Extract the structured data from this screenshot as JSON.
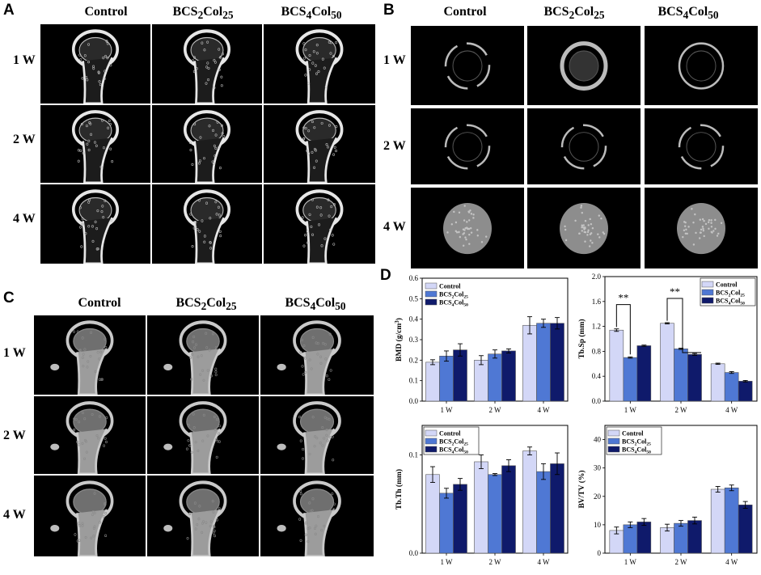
{
  "panels": {
    "A": {
      "letter": "A",
      "columns": [
        "Control",
        "BCS",
        "BCS"
      ],
      "column_sub": [
        {
          "pre": "BCS",
          "n1": "2",
          "mid": "Col",
          "n2": "25"
        },
        {
          "pre": "BCS",
          "n1": "4",
          "mid": "Col",
          "n2": "50"
        }
      ],
      "rows": [
        "1 W",
        "2 W",
        "4 W"
      ]
    },
    "B": {
      "letter": "B",
      "rows": [
        "1 W",
        "2 W",
        "4 W"
      ]
    },
    "C": {
      "letter": "C",
      "rows": [
        "1 W",
        "2 W",
        "4 W"
      ]
    },
    "D": {
      "letter": "D"
    }
  },
  "groups": {
    "control": "Control",
    "g2": {
      "pre": "BCS",
      "n1": "2",
      "mid": "Col",
      "n2": "25"
    },
    "g4": {
      "pre": "BCS",
      "n1": "4",
      "mid": "Col",
      "n2": "50"
    }
  },
  "colors": {
    "control": "#d3d7f7",
    "bcs2col25": "#4f78d4",
    "bcs4col50": "#0f1a6b"
  },
  "significance": [
    "**",
    "**"
  ],
  "chart_data": [
    {
      "type": "bar",
      "ylabel": "BMD (g/cm³)",
      "ylabel_parts": {
        "main": "BMD (g/cm",
        "sup": "3",
        "end": ")"
      },
      "categories": [
        "1 W",
        "2 W",
        "4 W"
      ],
      "ylim": [
        0,
        0.6
      ],
      "yticks": [
        "0.0",
        "0.1",
        "0.2",
        "0.3",
        "0.4",
        "0.5",
        "0.6"
      ],
      "legend": "top-left",
      "series": [
        {
          "name": "Control",
          "values": [
            0.19,
            0.2,
            0.37
          ],
          "errors": [
            0.012,
            0.022,
            0.042
          ]
        },
        {
          "name": "BCS2Col25",
          "values": [
            0.22,
            0.23,
            0.38
          ],
          "errors": [
            0.025,
            0.02,
            0.02
          ]
        },
        {
          "name": "BCS4Col50",
          "values": [
            0.25,
            0.245,
            0.38
          ],
          "errors": [
            0.03,
            0.01,
            0.028
          ]
        }
      ]
    },
    {
      "type": "bar",
      "ylabel": "Tb.Sp (mm)",
      "categories": [
        "1 W",
        "2 W",
        "4 W"
      ],
      "ylim": [
        0,
        2.0
      ],
      "yticks": [
        "0.0",
        "0.4",
        "0.8",
        "1.2",
        "1.6",
        "2.0"
      ],
      "legend": "top-right",
      "series": [
        {
          "name": "Control",
          "values": [
            1.14,
            1.25,
            0.6
          ],
          "errors": [
            0.02,
            0.01,
            0.01
          ]
        },
        {
          "name": "BCS2Col25",
          "values": [
            0.7,
            0.84,
            0.46
          ],
          "errors": [
            0.01,
            0.01,
            0.015
          ]
        },
        {
          "name": "BCS4Col50",
          "values": [
            0.89,
            0.75,
            0.32
          ],
          "errors": [
            0.01,
            0.015,
            0.012
          ]
        }
      ]
    },
    {
      "type": "bar",
      "ylabel": "Tb.Th (mm)",
      "categories": [
        "1 W",
        "2 W",
        "4 W"
      ],
      "ylim": [
        0,
        0.13
      ],
      "yticks": [
        "0.0",
        "0.1"
      ],
      "ytick_values": [
        0,
        0.1
      ],
      "legend": "top-left",
      "series": [
        {
          "name": "Control",
          "values": [
            0.08,
            0.093,
            0.104
          ],
          "errors": [
            0.008,
            0.007,
            0.004
          ]
        },
        {
          "name": "BCS2Col25",
          "values": [
            0.061,
            0.08,
            0.083
          ],
          "errors": [
            0.005,
            0.001,
            0.008
          ]
        },
        {
          "name": "BCS4Col50",
          "values": [
            0.07,
            0.089,
            0.091
          ],
          "errors": [
            0.006,
            0.006,
            0.011
          ]
        }
      ]
    },
    {
      "type": "bar",
      "ylabel": "BV/TV (%)",
      "categories": [
        "1 W",
        "2 W",
        "4 W"
      ],
      "ylim": [
        0,
        45
      ],
      "yticks": [
        "0",
        "10",
        "20",
        "30",
        "40"
      ],
      "legend": "top-left",
      "series": [
        {
          "name": "Control",
          "values": [
            8,
            9,
            22.5
          ],
          "errors": [
            1.2,
            1.2,
            1.0
          ]
        },
        {
          "name": "BCS2Col25",
          "values": [
            10,
            10.5,
            23
          ],
          "errors": [
            1.0,
            1.0,
            1.0
          ]
        },
        {
          "name": "BCS4Col50",
          "values": [
            11,
            11.5,
            17
          ],
          "errors": [
            1.2,
            1.2,
            1.2
          ]
        }
      ]
    }
  ]
}
